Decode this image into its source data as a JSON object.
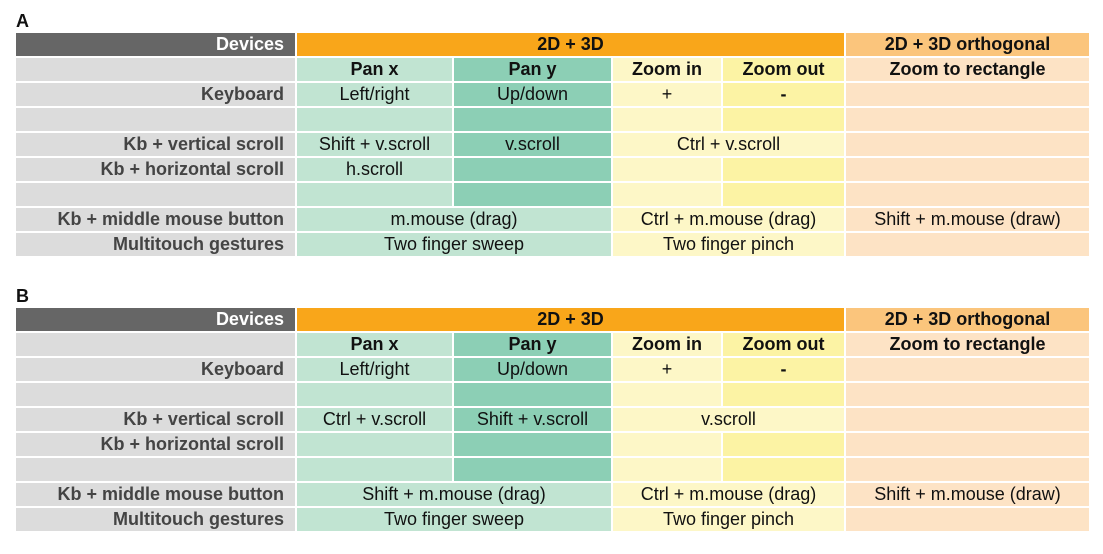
{
  "panels": [
    {
      "label": "A",
      "header": {
        "devices": "Devices",
        "group_2d3d": "2D + 3D",
        "group_orth": "2D + 3D orthogonal",
        "pan_x": "Pan x",
        "pan_y": "Pan y",
        "zoom_in": "Zoom in",
        "zoom_out": "Zoom out",
        "zoom_rect": "Zoom to rectangle"
      },
      "rows": {
        "keyboard": {
          "device": "Keyboard",
          "pan_x": "Left/right",
          "pan_y": "Up/down",
          "zoom_in": "+",
          "zoom_out": "-",
          "zoom_rect": ""
        },
        "vscroll": {
          "device": "Kb + vertical scroll",
          "pan_x": "Shift + v.scroll",
          "pan_y": "v.scroll",
          "zoom": "Ctrl + v.scroll",
          "zoom_rect": ""
        },
        "hscroll": {
          "device": "Kb + horizontal scroll",
          "pan_x": "h.scroll",
          "pan_y": "",
          "zoom_in": "",
          "zoom_out": "",
          "zoom_rect": ""
        },
        "mmb": {
          "device": "Kb + middle mouse button",
          "pan": "m.mouse (drag)",
          "zoom": "Ctrl + m.mouse (drag)",
          "zoom_rect": "Shift + m.mouse (draw)"
        },
        "touch": {
          "device": "Multitouch gestures",
          "pan": "Two finger sweep",
          "zoom": "Two finger pinch",
          "zoom_rect": ""
        }
      }
    },
    {
      "label": "B",
      "header": {
        "devices": "Devices",
        "group_2d3d": "2D + 3D",
        "group_orth": "2D + 3D orthogonal",
        "pan_x": "Pan x",
        "pan_y": "Pan y",
        "zoom_in": "Zoom in",
        "zoom_out": "Zoom out",
        "zoom_rect": "Zoom to rectangle"
      },
      "rows": {
        "keyboard": {
          "device": "Keyboard",
          "pan_x": "Left/right",
          "pan_y": "Up/down",
          "zoom_in": "+",
          "zoom_out": "-",
          "zoom_rect": ""
        },
        "vscroll": {
          "device": "Kb + vertical scroll",
          "pan_x": "Ctrl + v.scroll",
          "pan_y": "Shift + v.scroll",
          "zoom": "v.scroll",
          "zoom_rect": ""
        },
        "hscroll": {
          "device": "Kb + horizontal scroll",
          "pan_x": "",
          "pan_y": "",
          "zoom_in": "",
          "zoom_out": "",
          "zoom_rect": ""
        },
        "mmb": {
          "device": "Kb + middle mouse button",
          "pan": "Shift + m.mouse (drag)",
          "zoom": "Ctrl + m.mouse (drag)",
          "zoom_rect": "Shift + m.mouse (draw)"
        },
        "touch": {
          "device": "Multitouch gestures",
          "pan": "Two finger sweep",
          "zoom": "Two finger pinch",
          "zoom_rect": ""
        }
      }
    }
  ],
  "colors": {
    "devices_header": "#666666",
    "group_2d3d": "#f9a61a",
    "group_orth": "#fbc57c",
    "pan_x": "#c1e4d2",
    "pan_y": "#8ccfb5",
    "zoom_in": "#fdf7c7",
    "zoom_out": "#fcf3a4",
    "zoom_rect": "#fde3c5",
    "device_label_bg": "#dcdcdc"
  }
}
